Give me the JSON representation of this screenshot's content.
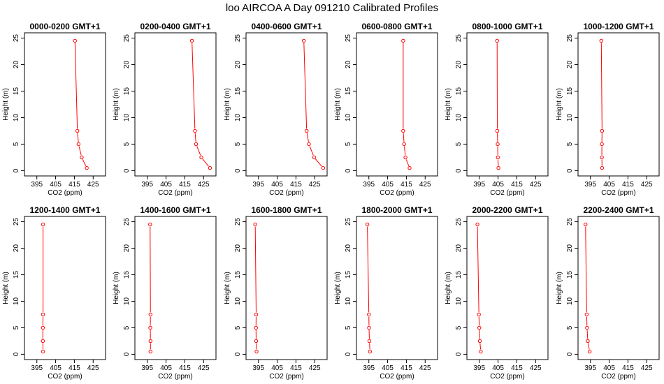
{
  "title": "loo AIRCOA A  Day 091210  Calibrated Profiles",
  "chart_data": [
    {
      "type": "line",
      "title": "0000-0200 GMT+1",
      "xlabel": "CO2 (ppm)",
      "ylabel": "Height (m)",
      "xlim": [
        390,
        430
      ],
      "ylim": [
        0,
        25
      ],
      "xticks": [
        "395",
        "405",
        "415",
        "425"
      ],
      "yticks": [
        "0",
        "5",
        "10",
        "15",
        "20",
        "25"
      ],
      "grid": false,
      "series": [
        {
          "x": [
            415.3,
            416.6,
            417.2,
            418.9,
            421.6
          ],
          "y": [
            24.5,
            7.5,
            5.0,
            2.5,
            0.5
          ],
          "color": "#ff0000"
        }
      ]
    },
    {
      "type": "line",
      "title": "0200-0400 GMT+1",
      "xlabel": "CO2 (ppm)",
      "ylabel": "Height (m)",
      "xlim": [
        390,
        430
      ],
      "ylim": [
        0,
        25
      ],
      "xticks": [
        "395",
        "405",
        "415",
        "425"
      ],
      "yticks": [
        "0",
        "5",
        "10",
        "15",
        "20",
        "25"
      ],
      "grid": false,
      "series": [
        {
          "x": [
            418.8,
            420.4,
            421.0,
            423.8,
            428.4
          ],
          "y": [
            24.5,
            7.5,
            5.0,
            2.5,
            0.5
          ],
          "color": "#ff0000"
        }
      ]
    },
    {
      "type": "line",
      "title": "0400-0600 GMT+1",
      "xlabel": "CO2 (ppm)",
      "ylabel": "Height (m)",
      "xlim": [
        390,
        430
      ],
      "ylim": [
        0,
        25
      ],
      "xticks": [
        "395",
        "405",
        "415",
        "425"
      ],
      "yticks": [
        "0",
        "5",
        "10",
        "15",
        "20",
        "25"
      ],
      "grid": false,
      "series": [
        {
          "x": [
            419.2,
            420.7,
            421.9,
            424.7,
            429.5
          ],
          "y": [
            24.5,
            7.5,
            5.0,
            2.5,
            0.5
          ],
          "color": "#ff0000"
        }
      ]
    },
    {
      "type": "line",
      "title": "0600-0800 GMT+1",
      "xlabel": "CO2 (ppm)",
      "ylabel": "Height (m)",
      "xlim": [
        390,
        430
      ],
      "ylim": [
        0,
        25
      ],
      "xticks": [
        "395",
        "405",
        "415",
        "425"
      ],
      "yticks": [
        "0",
        "5",
        "10",
        "15",
        "20",
        "25"
      ],
      "grid": false,
      "series": [
        {
          "x": [
            413.3,
            413.3,
            413.8,
            414.5,
            416.7
          ],
          "y": [
            24.5,
            7.5,
            5.0,
            2.5,
            0.5
          ],
          "color": "#ff0000"
        }
      ]
    },
    {
      "type": "line",
      "title": "0800-1000 GMT+1",
      "xlabel": "CO2 (ppm)",
      "ylabel": "Height (m)",
      "xlim": [
        390,
        430
      ],
      "ylim": [
        0,
        25
      ],
      "xticks": [
        "395",
        "405",
        "415",
        "425"
      ],
      "yticks": [
        "0",
        "5",
        "10",
        "15",
        "20",
        "25"
      ],
      "grid": false,
      "series": [
        {
          "x": [
            404.5,
            404.6,
            404.8,
            404.9,
            405.2
          ],
          "y": [
            24.5,
            7.5,
            5.0,
            2.5,
            0.5
          ],
          "color": "#ff0000"
        }
      ]
    },
    {
      "type": "line",
      "title": "1000-1200 GMT+1",
      "xlabel": "CO2 (ppm)",
      "ylabel": "Height (m)",
      "xlim": [
        390,
        430
      ],
      "ylim": [
        0,
        25
      ],
      "xticks": [
        "395",
        "405",
        "415",
        "425"
      ],
      "yticks": [
        "0",
        "5",
        "10",
        "15",
        "20",
        "25"
      ],
      "grid": false,
      "series": [
        {
          "x": [
            400.8,
            401.2,
            401.1,
            401.1,
            401.2
          ],
          "y": [
            24.5,
            7.5,
            5.0,
            2.5,
            0.5
          ],
          "color": "#ff0000"
        }
      ]
    },
    {
      "type": "line",
      "title": "1200-1400 GMT+1",
      "xlabel": "CO2 (ppm)",
      "ylabel": "Height (m)",
      "xlim": [
        390,
        430
      ],
      "ylim": [
        0,
        25
      ],
      "xticks": [
        "395",
        "405",
        "415",
        "425"
      ],
      "yticks": [
        "0",
        "5",
        "10",
        "15",
        "20",
        "25"
      ],
      "grid": false,
      "series": [
        {
          "x": [
            398.3,
            398.3,
            398.2,
            398.2,
            398.3
          ],
          "y": [
            24.5,
            7.5,
            5.0,
            2.5,
            0.5
          ],
          "color": "#ff0000"
        }
      ]
    },
    {
      "type": "line",
      "title": "1400-1600 GMT+1",
      "xlabel": "CO2 (ppm)",
      "ylabel": "Height (m)",
      "xlim": [
        390,
        430
      ],
      "ylim": [
        0,
        25
      ],
      "xticks": [
        "395",
        "405",
        "415",
        "425"
      ],
      "yticks": [
        "0",
        "5",
        "10",
        "15",
        "20",
        "25"
      ],
      "grid": false,
      "series": [
        {
          "x": [
            396.5,
            396.7,
            396.6,
            396.7,
            396.7
          ],
          "y": [
            24.5,
            7.5,
            5.0,
            2.5,
            0.5
          ],
          "color": "#ff0000"
        }
      ]
    },
    {
      "type": "line",
      "title": "1600-1800 GMT+1",
      "xlabel": "CO2 (ppm)",
      "ylabel": "Height (m)",
      "xlim": [
        390,
        430
      ],
      "ylim": [
        0,
        25
      ],
      "xticks": [
        "395",
        "405",
        "415",
        "425"
      ],
      "yticks": [
        "0",
        "5",
        "10",
        "15",
        "20",
        "25"
      ],
      "grid": false,
      "series": [
        {
          "x": [
            393.3,
            393.8,
            393.7,
            393.8,
            394.0
          ],
          "y": [
            24.5,
            7.5,
            5.0,
            2.5,
            0.5
          ],
          "color": "#ff0000"
        }
      ]
    },
    {
      "type": "line",
      "title": "1800-2000 GMT+1",
      "xlabel": "CO2 (ppm)",
      "ylabel": "Height (m)",
      "xlim": [
        390,
        430
      ],
      "ylim": [
        0,
        25
      ],
      "xticks": [
        "395",
        "405",
        "415",
        "425"
      ],
      "yticks": [
        "0",
        "5",
        "10",
        "15",
        "20",
        "25"
      ],
      "grid": false,
      "series": [
        {
          "x": [
            394.2,
            395.0,
            395.1,
            395.3,
            395.6
          ],
          "y": [
            24.5,
            7.5,
            5.0,
            2.5,
            0.5
          ],
          "color": "#ff0000"
        }
      ]
    },
    {
      "type": "line",
      "title": "2000-2200 GMT+1",
      "xlabel": "CO2 (ppm)",
      "ylabel": "Height (m)",
      "xlim": [
        390,
        430
      ],
      "ylim": [
        0,
        25
      ],
      "xticks": [
        "395",
        "405",
        "415",
        "425"
      ],
      "yticks": [
        "0",
        "5",
        "10",
        "15",
        "20",
        "25"
      ],
      "grid": false,
      "series": [
        {
          "x": [
            394.0,
            394.8,
            395.0,
            395.3,
            395.8
          ],
          "y": [
            24.5,
            7.5,
            5.0,
            2.5,
            0.5
          ],
          "color": "#ff0000"
        }
      ]
    },
    {
      "type": "line",
      "title": "2200-2400 GMT+1",
      "xlabel": "CO2 (ppm)",
      "ylabel": "Height (m)",
      "xlim": [
        390,
        430
      ],
      "ylim": [
        0,
        25
      ],
      "xticks": [
        "395",
        "405",
        "415",
        "425"
      ],
      "yticks": [
        "0",
        "5",
        "10",
        "15",
        "20",
        "25"
      ],
      "grid": false,
      "series": [
        {
          "x": [
            392.4,
            393.0,
            393.2,
            393.6,
            394.6
          ],
          "y": [
            24.5,
            7.5,
            5.0,
            2.5,
            0.5
          ],
          "color": "#ff0000"
        }
      ]
    }
  ]
}
